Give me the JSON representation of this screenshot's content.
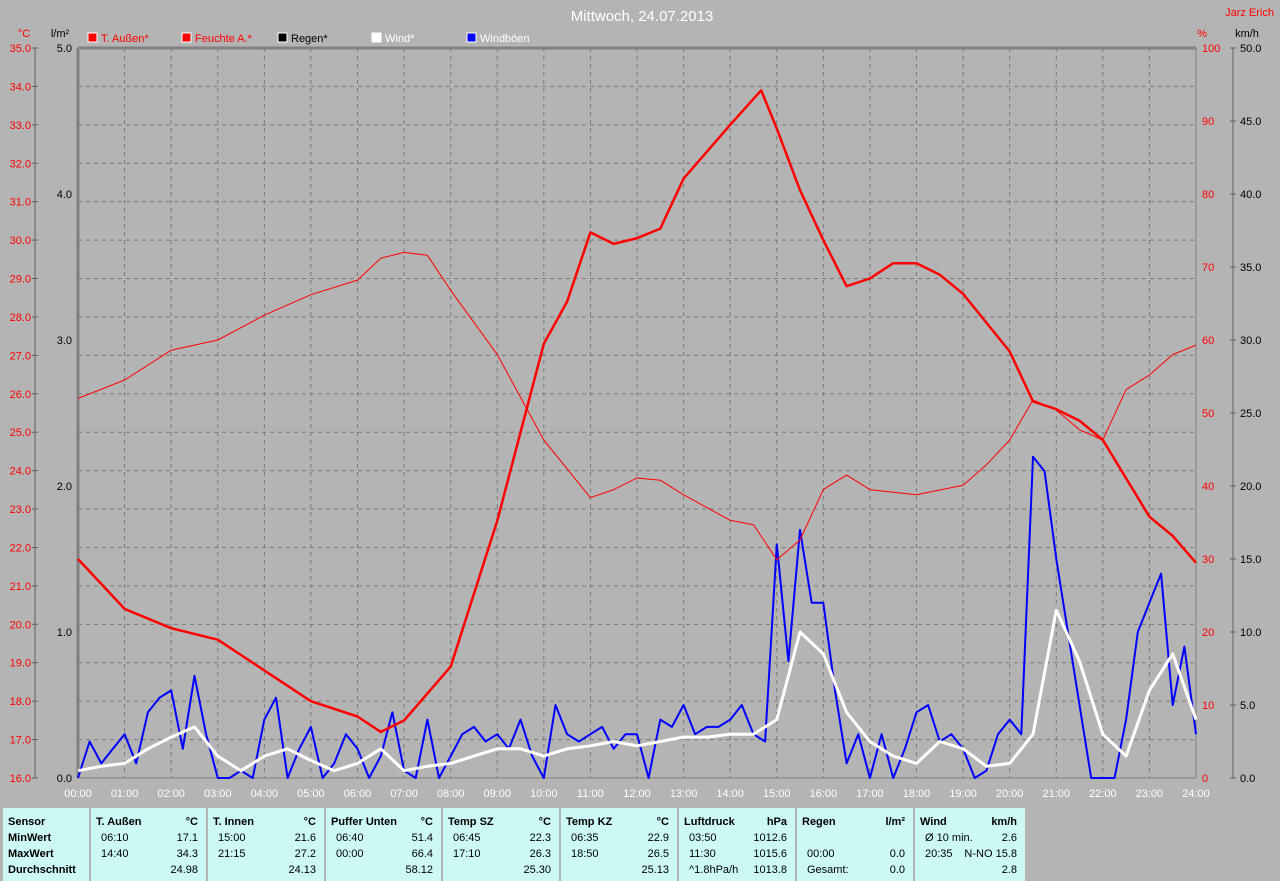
{
  "chart_data": {
    "type": "line",
    "title": "Mittwoch, 24.07.2013",
    "author": "Jarz Erich",
    "x_ticks": [
      "00:00",
      "01:00",
      "02:00",
      "03:00",
      "04:00",
      "05:00",
      "06:00",
      "07:00",
      "08:00",
      "09:00",
      "10:00",
      "11:00",
      "12:00",
      "13:00",
      "14:00",
      "15:00",
      "16:00",
      "17:00",
      "18:00",
      "19:00",
      "20:00",
      "21:00",
      "22:00",
      "23:00",
      "24:00"
    ],
    "axes": {
      "temp": {
        "unit": "°C",
        "range": [
          16,
          35
        ],
        "ticks": [
          "16.0",
          "17.0",
          "18.0",
          "19.0",
          "20.0",
          "21.0",
          "22.0",
          "23.0",
          "24.0",
          "25.0",
          "26.0",
          "27.0",
          "28.0",
          "29.0",
          "30.0",
          "31.0",
          "32.0",
          "33.0",
          "34.0",
          "35.0"
        ],
        "color": "#ff0000"
      },
      "rain": {
        "unit": "l/m²",
        "range": [
          0,
          5
        ],
        "ticks": [
          "0.0",
          "1.0",
          "2.0",
          "3.0",
          "4.0",
          "5.0"
        ],
        "color": "#000000"
      },
      "humidity": {
        "unit": "%",
        "range": [
          0,
          100
        ],
        "ticks": [
          "0",
          "10",
          "20",
          "30",
          "40",
          "50",
          "60",
          "70",
          "80",
          "90",
          "100"
        ],
        "color": "#ff0000"
      },
      "wind": {
        "unit": "km/h",
        "range": [
          0,
          50
        ],
        "ticks": [
          "0.0",
          "5.0",
          "10.0",
          "15.0",
          "20.0",
          "25.0",
          "30.0",
          "35.0",
          "40.0",
          "45.0",
          "50.0"
        ],
        "color": "#000000"
      }
    },
    "grid": true,
    "legend": [
      {
        "name": "T. Außen*",
        "color": "#ff0000",
        "text_color": "#ff0000"
      },
      {
        "name": "Feuchte A.*",
        "color": "#ff0000",
        "text_color": "#ff0000"
      },
      {
        "name": "Regen*",
        "color": "#000000",
        "text_color": "#000000"
      },
      {
        "name": "Wind*",
        "color": "#ffffff",
        "text_color": "#ffffff"
      },
      {
        "name": "Windböen",
        "color": "#0000ff",
        "text_color": "#ffffff"
      }
    ],
    "series": [
      {
        "name": "T. Außen*",
        "axis": "temp",
        "color": "#ff0000",
        "width": 2.5,
        "x": [
          "00:00",
          "01:00",
          "02:00",
          "03:00",
          "04:00",
          "05:00",
          "06:00",
          "06:30",
          "07:00",
          "08:00",
          "09:00",
          "10:00",
          "10:30",
          "11:00",
          "11:30",
          "12:00",
          "12:30",
          "13:00",
          "14:00",
          "14:40",
          "15:00",
          "15:30",
          "16:00",
          "16:30",
          "17:00",
          "17:30",
          "18:00",
          "18:30",
          "19:00",
          "20:00",
          "20:30",
          "21:00",
          "21:30",
          "22:00",
          "22:30",
          "23:00",
          "23:30",
          "24:00"
        ],
        "values": [
          21.7,
          20.4,
          19.9,
          19.6,
          18.8,
          18.0,
          17.6,
          17.2,
          17.5,
          18.9,
          22.7,
          27.3,
          28.4,
          30.2,
          29.9,
          30.05,
          30.3,
          31.6,
          33.0,
          33.9,
          32.9,
          31.3,
          30.0,
          28.8,
          29.0,
          29.4,
          29.4,
          29.1,
          28.6,
          27.1,
          25.8,
          25.6,
          25.3,
          24.8,
          23.8,
          22.8,
          22.3,
          21.6
        ]
      },
      {
        "name": "Feuchte A.*",
        "axis": "humidity",
        "color": "#ff0000",
        "width": 1,
        "x": [
          "00:00",
          "01:00",
          "02:00",
          "03:00",
          "04:00",
          "05:00",
          "06:00",
          "06:30",
          "07:00",
          "07:30",
          "08:00",
          "09:00",
          "10:00",
          "11:00",
          "11:30",
          "12:00",
          "12:30",
          "13:00",
          "14:00",
          "14:30",
          "15:00",
          "15:30",
          "16:00",
          "16:30",
          "17:00",
          "18:00",
          "19:00",
          "19:30",
          "20:00",
          "20:30",
          "21:00",
          "21:30",
          "22:00",
          "22:30",
          "23:00",
          "23:30",
          "24:00"
        ],
        "values": [
          52,
          54.5,
          58.6,
          60,
          63.4,
          66.2,
          68.2,
          71.2,
          72,
          71.6,
          66.8,
          58,
          46.3,
          38.4,
          39.5,
          41.1,
          40.8,
          38.8,
          35.3,
          34.7,
          29.9,
          32.6,
          39.5,
          41.5,
          39.5,
          38.8,
          40.1,
          42.9,
          46.3,
          51.8,
          50.4,
          47.7,
          46.3,
          53.2,
          55.2,
          58,
          59.3
        ]
      },
      {
        "name": "Wind*",
        "axis": "wind",
        "color": "#ffffff",
        "width": 3,
        "interval_minutes": 30,
        "values": [
          0.5,
          0.8,
          1.0,
          2.0,
          2.8,
          3.5,
          1.5,
          0.5,
          1.5,
          2.0,
          1.2,
          0.5,
          1.0,
          2.0,
          0.5,
          0.8,
          1.0,
          1.5,
          2.0,
          2.0,
          1.5,
          2.0,
          2.2,
          2.5,
          2.2,
          2.5,
          2.8,
          2.8,
          3.0,
          3.0,
          4.0,
          10.0,
          8.5,
          4.5,
          2.5,
          1.5,
          1.0,
          2.5,
          2.0,
          0.8,
          1.0,
          3.0,
          11.5,
          8.0,
          3.0,
          1.5,
          6.0,
          8.5,
          4.0
        ]
      },
      {
        "name": "Windböen",
        "axis": "wind",
        "color": "#0000ff",
        "width": 2,
        "interval_minutes": 15,
        "values": [
          0,
          2.5,
          1,
          2,
          3,
          1,
          4.5,
          5.5,
          6,
          2,
          7,
          3,
          0,
          0,
          0.5,
          0,
          4,
          5.5,
          0,
          2,
          3.5,
          0,
          1,
          3,
          2,
          0,
          1.5,
          4.5,
          0.5,
          0,
          4,
          0,
          1.5,
          3,
          3.5,
          2.5,
          3,
          2,
          4,
          1.5,
          0,
          5,
          3,
          2.5,
          3,
          3.5,
          2,
          3,
          3,
          0,
          4,
          3.5,
          5,
          3,
          3.5,
          3.5,
          4,
          5,
          3,
          2.5,
          16,
          8,
          17,
          12,
          12,
          6,
          1,
          3,
          0,
          3,
          0,
          2,
          4.5,
          5,
          2.5,
          3,
          2,
          0,
          0.5,
          3,
          4,
          3,
          22,
          21,
          15,
          10,
          5,
          0,
          0,
          0,
          4,
          10,
          12,
          14,
          5,
          9,
          3
        ]
      }
    ]
  },
  "stats": {
    "columns": [
      {
        "header": "Sensor",
        "rows": [
          "MinWert",
          "MaxWert",
          "Durchschnitt"
        ]
      },
      {
        "header": "T. Außen",
        "unit": "°C",
        "rows": [
          [
            "06:10",
            "17.1"
          ],
          [
            "14:40",
            "34.3"
          ],
          [
            "",
            "24.98"
          ]
        ]
      },
      {
        "header": "T. Innen",
        "unit": "°C",
        "rows": [
          [
            "15:00",
            "21.6"
          ],
          [
            "21:15",
            "27.2"
          ],
          [
            "",
            "24.13"
          ]
        ]
      },
      {
        "header": "Puffer Unten",
        "unit": "°C",
        "rows": [
          [
            "06:40",
            "51.4"
          ],
          [
            "00:00",
            "66.4"
          ],
          [
            "",
            "58.12"
          ]
        ]
      },
      {
        "header": "Temp SZ",
        "unit": "°C",
        "rows": [
          [
            "06:45",
            "22.3"
          ],
          [
            "17:10",
            "26.3"
          ],
          [
            "",
            "25.30"
          ]
        ]
      },
      {
        "header": "Temp KZ",
        "unit": "°C",
        "rows": [
          [
            "06:35",
            "22.9"
          ],
          [
            "18:50",
            "26.5"
          ],
          [
            "",
            "25.13"
          ]
        ]
      },
      {
        "header": "Luftdruck",
        "unit": "hPa",
        "rows": [
          [
            "03:50",
            "1012.6"
          ],
          [
            "11:30",
            "1015.6"
          ],
          [
            "^1.8hPa/h",
            "1013.8"
          ]
        ]
      },
      {
        "header": "Regen",
        "unit": "l/m²",
        "rows": [
          [
            "",
            ""
          ],
          [
            "00:00",
            "0.0"
          ],
          [
            "Gesamt:",
            "0.0"
          ]
        ]
      },
      {
        "header": "Wind",
        "unit": "km/h",
        "rows": [
          [
            "Ø 10 min.",
            "2.6"
          ],
          [
            "20:35",
            "N-NO 15.8"
          ],
          [
            "",
            "2.8"
          ]
        ]
      }
    ]
  }
}
